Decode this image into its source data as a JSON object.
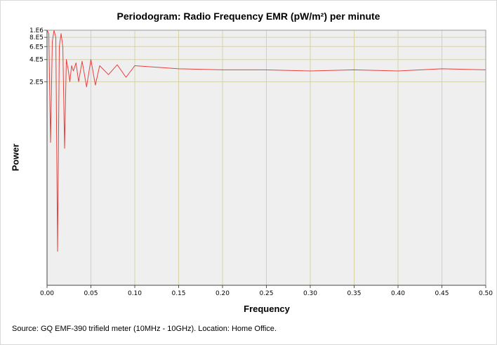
{
  "chart_data": {
    "type": "line",
    "title": "Periodogram: Radio Frequency EMR (pW/m²) per minute",
    "xlabel": "Frequency",
    "ylabel": "Power",
    "xlim": [
      0.0,
      0.5
    ],
    "ylim_log10": [
      2.54,
      6.0
    ],
    "y_scale": "log",
    "grid": true,
    "x_ticks": [
      "0.00",
      "0.05",
      "0.10",
      "0.15",
      "0.20",
      "0.25",
      "0.30",
      "0.35",
      "0.40",
      "0.45",
      "0.50"
    ],
    "x_tick_values": [
      0.0,
      0.05,
      0.1,
      0.15,
      0.2,
      0.25,
      0.3,
      0.35,
      0.4,
      0.45,
      0.5
    ],
    "y_ticks": [
      "1.E6",
      "8.E5",
      "6.E5",
      "4.E5",
      "2.E5"
    ],
    "y_tick_values": [
      1000000,
      800000,
      600000,
      400000,
      200000
    ],
    "series": [
      {
        "color": "#e8403c",
        "x": [
          0.0,
          0.002,
          0.004,
          0.006,
          0.008,
          0.01,
          0.012,
          0.014,
          0.016,
          0.018,
          0.02,
          0.022,
          0.024,
          0.026,
          0.028,
          0.03,
          0.033,
          0.036,
          0.04,
          0.045,
          0.05,
          0.055,
          0.06,
          0.07,
          0.08,
          0.09,
          0.1,
          0.15,
          0.2,
          0.25,
          0.3,
          0.35,
          0.4,
          0.45,
          0.5
        ],
        "y": [
          1000000,
          900000,
          30000,
          700000,
          1000000,
          800000,
          1000,
          600000,
          900000,
          600000,
          25000,
          400000,
          300000,
          200000,
          330000,
          280000,
          360000,
          200000,
          380000,
          170000,
          400000,
          180000,
          330000,
          250000,
          340000,
          230000,
          330000,
          300000,
          290000,
          290000,
          280000,
          290000,
          280000,
          300000,
          290000
        ]
      }
    ]
  },
  "source": "Source: GQ EMF-390 trifield meter (10MHz - 10GHz). Location: Home Office.",
  "colors": {
    "plot_bg": "#efefef",
    "grid": "#d6d3a8",
    "line": "#e8403c"
  }
}
